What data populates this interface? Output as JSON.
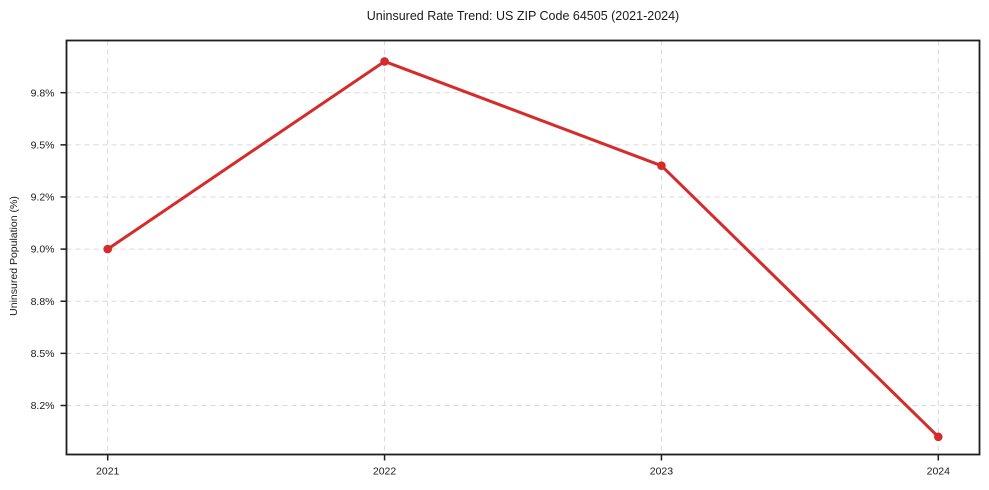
{
  "chart_data": {
    "type": "line",
    "title": "Uninsured Rate Trend: US ZIP Code 64505 (2021-2024)",
    "xlabel": "",
    "ylabel": "Uninsured Population (%)",
    "x": [
      "2021",
      "2022",
      "2023",
      "2024"
    ],
    "values": [
      9.0,
      9.98,
      9.38,
      8.02
    ],
    "y_axis": {
      "tick_labels": [
        "9.8%",
        "9.5%",
        "9.2%",
        "9.0%",
        "8.8%",
        "8.5%",
        "8.2%"
      ],
      "tick_values": [
        9.8,
        9.5,
        9.2,
        9.0,
        8.8,
        8.5,
        8.2
      ],
      "scale": "evenly-spaced-ticks"
    },
    "grid": "dashed-both-axes",
    "legend": "none",
    "marker": "circle"
  },
  "colors": {
    "line": "#d62b2b",
    "grid": "#d9d9d9",
    "axis": "#1f1f1f",
    "text": "#1a1a1a",
    "background": "#ffffff"
  }
}
